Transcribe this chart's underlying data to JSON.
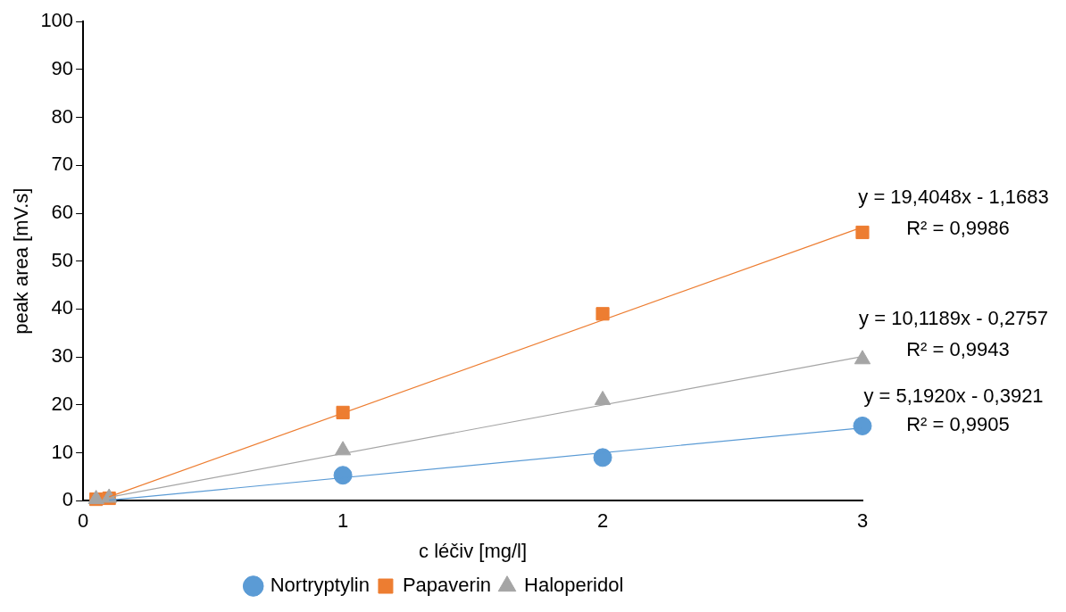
{
  "chart_data": {
    "type": "scatter",
    "xlabel": "c léčiv [mg/l]",
    "ylabel": "peak area [mV.s]",
    "xlim": [
      0,
      3
    ],
    "xticks": [
      0,
      1,
      2,
      3
    ],
    "ylim": [
      0,
      100
    ],
    "yticks": [
      0,
      10,
      20,
      30,
      40,
      50,
      60,
      70,
      80,
      90,
      100
    ],
    "grid": false,
    "legend": "bottom",
    "series": [
      {
        "name": "Nortryptylin",
        "color": "#5b9bd5",
        "marker": "circle",
        "x": [
          1,
          2,
          3
        ],
        "values": [
          5.3,
          9.0,
          15.6
        ]
      },
      {
        "name": "Papaverin",
        "color": "#ed7d31",
        "marker": "square",
        "x": [
          0.05,
          0.1,
          1,
          2,
          3
        ],
        "values": [
          0.3,
          0.5,
          18.4,
          39.0,
          56.0
        ]
      },
      {
        "name": "Haloperidol",
        "color": "#a5a5a5",
        "marker": "triangle",
        "x": [
          0.05,
          0.1,
          1,
          2,
          3
        ],
        "values": [
          0.3,
          0.6,
          10.5,
          21.0,
          29.5
        ]
      },
      {
        "type": "line",
        "color": "#5b9bd5",
        "marker": "none",
        "x": [
          0.1,
          3
        ],
        "values": [
          0.1,
          15.2
        ]
      },
      {
        "type": "line",
        "color": "#ed7d31",
        "marker": "none",
        "x": [
          0.1,
          3
        ],
        "values": [
          0.8,
          57.1
        ]
      },
      {
        "type": "line",
        "color": "#a5a5a5",
        "marker": "none",
        "x": [
          0.1,
          3
        ],
        "values": [
          0.7,
          30.1
        ]
      }
    ],
    "annotations": [
      "y = 19,4048x - 1,1683",
      "R² = 0,9986",
      "y = 10,1189x - 0,2757",
      "R² = 0,9943",
      "y = 5,1920x - 0,3921",
      "R² = 0,9905"
    ]
  }
}
